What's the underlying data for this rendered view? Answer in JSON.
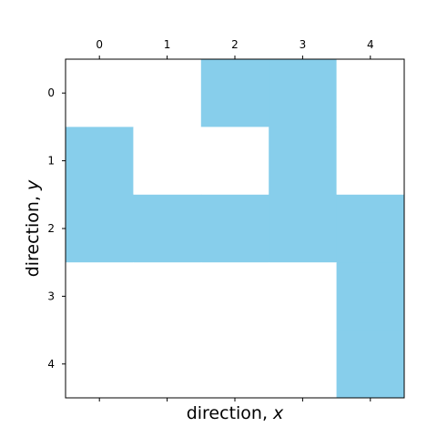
{
  "chart_data": {
    "type": "heatmap",
    "xlabel": "direction, ",
    "xlabel_var": "x",
    "ylabel": "direction, ",
    "ylabel_var": "y",
    "x_ticks": [
      "0",
      "1",
      "2",
      "3",
      "4"
    ],
    "y_ticks": [
      "0",
      "1",
      "2",
      "3",
      "4"
    ],
    "x_tick_position": "top",
    "y_axis_inverted": true,
    "grid": false,
    "values": [
      [
        0,
        0,
        1,
        1,
        0
      ],
      [
        1,
        0,
        0,
        1,
        0
      ],
      [
        1,
        1,
        1,
        1,
        1
      ],
      [
        0,
        0,
        0,
        0,
        1
      ],
      [
        0,
        0,
        0,
        0,
        1
      ]
    ],
    "colors": {
      "1": "#87ceeb",
      "0": "#ffffff"
    }
  }
}
